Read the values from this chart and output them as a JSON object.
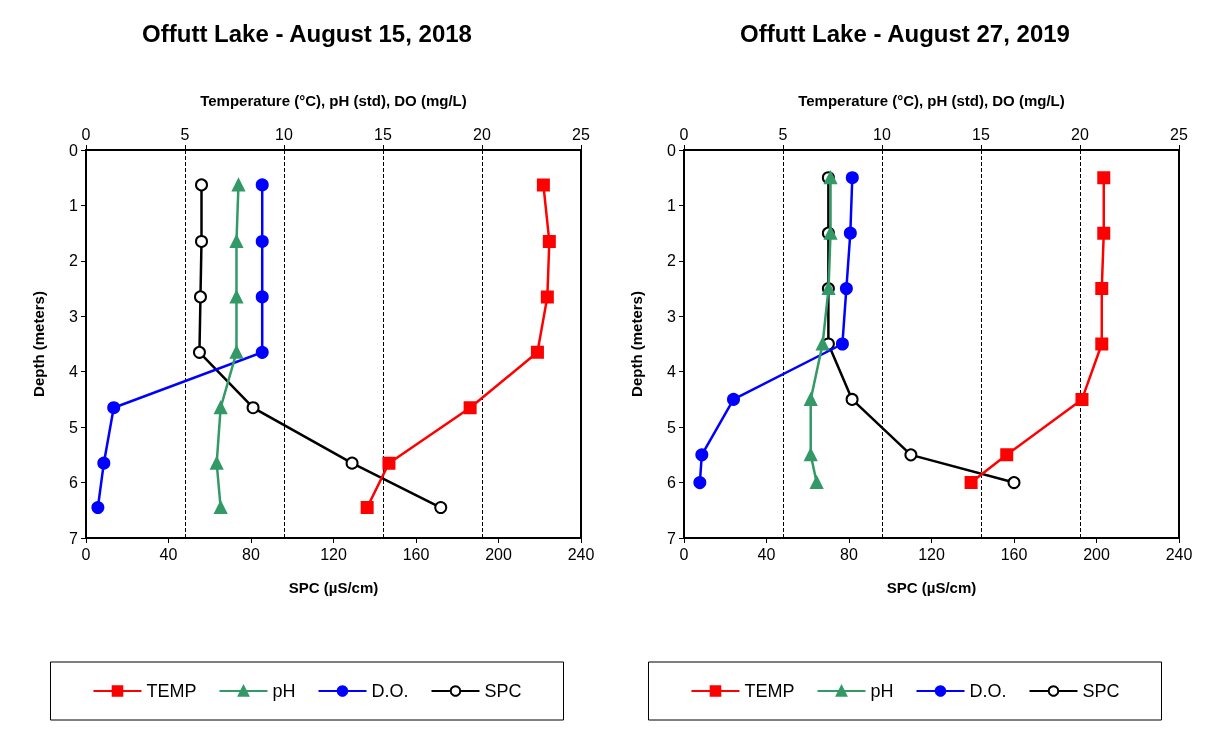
{
  "chart_data": [
    {
      "type": "line",
      "title": "Offutt Lake - August 15, 2018",
      "x2label": "Temperature (°C), pH (std), DO (mg/L)",
      "xlabel": "SPC (µS/cm)",
      "ylabel": "Depth (meters)",
      "xlim": [
        0,
        240
      ],
      "xticks": [
        0,
        40,
        80,
        120,
        160,
        200,
        240
      ],
      "x2lim": [
        0,
        25
      ],
      "x2ticks": [
        0,
        5,
        10,
        15,
        20,
        25
      ],
      "ylim": [
        7,
        0
      ],
      "yticks": [
        0,
        1,
        2,
        3,
        4,
        5,
        6,
        7
      ],
      "grid": "x",
      "legend": "bottom",
      "line_style": "solid",
      "series": [
        {
          "name": "TEMP",
          "color": "#ff0000",
          "marker": "square",
          "axis": "x2",
          "x": [
            23.1,
            23.4,
            23.3,
            22.8,
            19.4,
            15.3,
            14.2
          ],
          "values": [
            0.63,
            1.65,
            2.65,
            3.65,
            4.65,
            5.65,
            6.45
          ]
        },
        {
          "name": "pH",
          "color": "#339966",
          "marker": "triangle",
          "axis": "x2",
          "x": [
            7.7,
            7.6,
            7.6,
            7.6,
            6.8,
            6.6,
            6.8
          ],
          "values": [
            0.63,
            1.65,
            2.65,
            3.65,
            4.65,
            5.65,
            6.45
          ]
        },
        {
          "name": "D.O.",
          "color": "#0000ff",
          "marker": "circle",
          "axis": "x2",
          "x": [
            8.9,
            8.9,
            8.9,
            8.9,
            1.4,
            0.9,
            0.6
          ],
          "values": [
            0.63,
            1.65,
            2.65,
            3.65,
            4.65,
            5.65,
            6.45
          ]
        },
        {
          "name": "SPC",
          "color": "#000000",
          "marker": "circle",
          "x": [
            56,
            56,
            55.5,
            55,
            81,
            129,
            172
          ],
          "values": [
            0.63,
            1.65,
            2.65,
            3.65,
            4.65,
            5.65,
            6.45
          ]
        }
      ]
    },
    {
      "type": "line",
      "title": "Offutt Lake - August 27, 2019",
      "x2label": "Temperature (°C), pH (std), DO (mg/L)",
      "xlabel": "SPC (µS/cm)",
      "ylabel": "Depth (meters)",
      "xlim": [
        0,
        240
      ],
      "xticks": [
        0,
        40,
        80,
        120,
        160,
        200,
        240
      ],
      "x2lim": [
        0,
        25
      ],
      "x2ticks": [
        0,
        5,
        10,
        15,
        20,
        25
      ],
      "ylim": [
        7,
        0
      ],
      "yticks": [
        0,
        1,
        2,
        3,
        4,
        5,
        6,
        7
      ],
      "grid": "x",
      "legend": "bottom",
      "line_style": "solid",
      "series": [
        {
          "name": "TEMP",
          "color": "#ff0000",
          "marker": "square",
          "axis": "x2",
          "x": [
            21.2,
            21.2,
            21.1,
            21.1,
            20.1,
            16.3,
            14.5
          ],
          "values": [
            0.5,
            1.5,
            2.5,
            3.5,
            4.5,
            5.5,
            6.0
          ]
        },
        {
          "name": "pH",
          "color": "#339966",
          "marker": "triangle",
          "axis": "x2",
          "x": [
            7.4,
            7.4,
            7.3,
            7.0,
            6.4,
            6.4,
            6.7
          ],
          "values": [
            0.5,
            1.5,
            2.5,
            3.5,
            4.5,
            5.5,
            6.0
          ]
        },
        {
          "name": "D.O.",
          "color": "#0000ff",
          "marker": "circle",
          "axis": "x2",
          "x": [
            8.5,
            8.4,
            8.2,
            8.0,
            2.5,
            0.9,
            0.8
          ],
          "values": [
            0.5,
            1.5,
            2.5,
            3.5,
            4.5,
            5.5,
            6.0
          ]
        },
        {
          "name": "SPC",
          "color": "#000000",
          "marker": "circle",
          "x": [
            70,
            70,
            70,
            70,
            81.5,
            110,
            160
          ],
          "values": [
            0.5,
            1.5,
            2.5,
            3.5,
            4.5,
            5.5,
            6.0
          ]
        }
      ]
    }
  ]
}
